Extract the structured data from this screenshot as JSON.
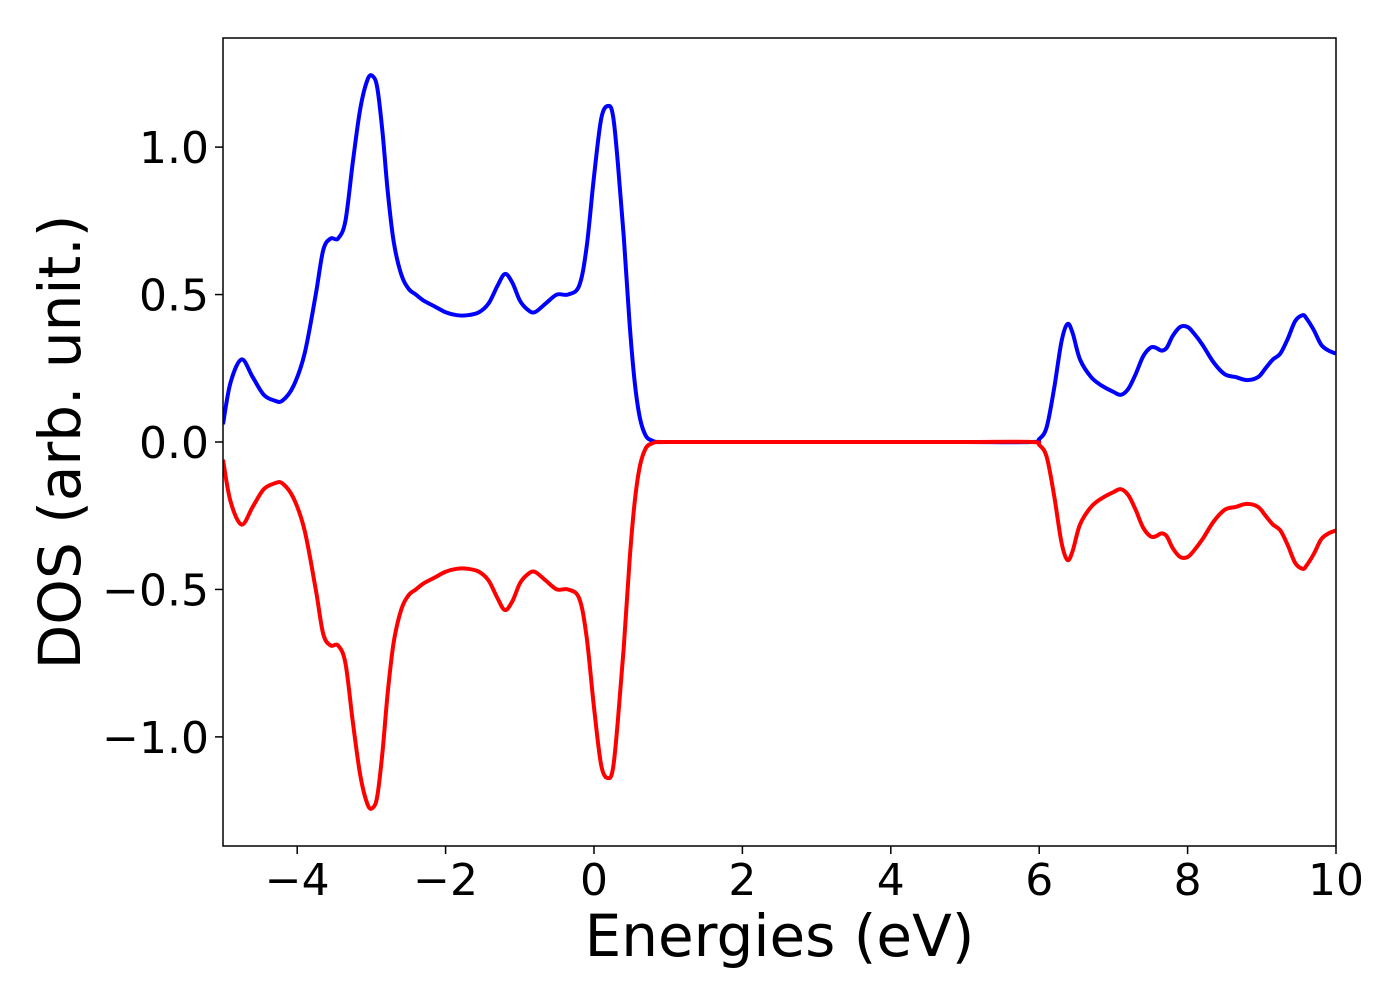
{
  "chart_data": {
    "type": "line",
    "title": "",
    "xlabel": "Energies (eV)",
    "ylabel": "DOS (arb. unit.)",
    "xlim": [
      -5,
      10
    ],
    "ylim": [
      -1.37,
      1.37
    ],
    "grid": false,
    "legend": "none",
    "x_ticks": [
      {
        "value": -4,
        "label": "−4"
      },
      {
        "value": -2,
        "label": "−2"
      },
      {
        "value": 0,
        "label": "0"
      },
      {
        "value": 2,
        "label": "2"
      },
      {
        "value": 4,
        "label": "4"
      },
      {
        "value": 6,
        "label": "6"
      },
      {
        "value": 8,
        "label": "8"
      },
      {
        "value": 10,
        "label": "10"
      }
    ],
    "y_ticks": [
      {
        "value": 1.0,
        "label": "1.0"
      },
      {
        "value": 0.5,
        "label": "0.5"
      },
      {
        "value": 0.0,
        "label": "0.0"
      },
      {
        "value": -0.5,
        "label": "−0.5"
      },
      {
        "value": -1.0,
        "label": "−1.0"
      }
    ],
    "series": [
      {
        "color": "#0000ff",
        "x": [
          -5.0,
          -4.9,
          -4.75,
          -4.6,
          -4.45,
          -4.3,
          -4.2,
          -4.05,
          -3.9,
          -3.75,
          -3.65,
          -3.55,
          -3.45,
          -3.35,
          -3.25,
          -3.15,
          -3.05,
          -2.98,
          -2.92,
          -2.85,
          -2.78,
          -2.7,
          -2.6,
          -2.5,
          -2.4,
          -2.3,
          -2.15,
          -2.0,
          -1.85,
          -1.7,
          -1.55,
          -1.42,
          -1.3,
          -1.2,
          -1.1,
          -1.0,
          -0.9,
          -0.8,
          -0.65,
          -0.5,
          -0.35,
          -0.2,
          -0.1,
          0.0,
          0.1,
          0.2,
          0.26,
          0.32,
          0.4,
          0.48,
          0.55,
          0.62,
          0.7,
          0.78,
          0.85,
          1.0,
          2.0,
          3.0,
          4.0,
          5.0,
          5.9,
          6.0,
          6.1,
          6.2,
          6.3,
          6.38,
          6.45,
          6.55,
          6.7,
          6.85,
          7.0,
          7.1,
          7.2,
          7.3,
          7.4,
          7.5,
          7.57,
          7.65,
          7.72,
          7.8,
          7.9,
          8.0,
          8.08,
          8.2,
          8.35,
          8.5,
          8.65,
          8.8,
          8.95,
          9.05,
          9.15,
          9.25,
          9.35,
          9.45,
          9.55,
          9.6,
          9.7,
          9.8,
          9.9,
          10.0
        ],
        "y": [
          0.06,
          0.2,
          0.28,
          0.22,
          0.16,
          0.14,
          0.14,
          0.19,
          0.3,
          0.5,
          0.65,
          0.69,
          0.69,
          0.75,
          0.95,
          1.13,
          1.23,
          1.24,
          1.2,
          1.05,
          0.85,
          0.68,
          0.57,
          0.52,
          0.5,
          0.48,
          0.46,
          0.44,
          0.43,
          0.43,
          0.44,
          0.47,
          0.53,
          0.57,
          0.54,
          0.48,
          0.45,
          0.44,
          0.47,
          0.5,
          0.5,
          0.53,
          0.66,
          0.9,
          1.1,
          1.14,
          1.1,
          0.95,
          0.7,
          0.4,
          0.2,
          0.08,
          0.02,
          0.005,
          0.0,
          0.0,
          0.0,
          0.0,
          0.0,
          0.0,
          0.0,
          0.01,
          0.05,
          0.18,
          0.34,
          0.4,
          0.37,
          0.28,
          0.22,
          0.19,
          0.17,
          0.16,
          0.18,
          0.23,
          0.29,
          0.32,
          0.32,
          0.31,
          0.32,
          0.36,
          0.39,
          0.39,
          0.37,
          0.33,
          0.27,
          0.23,
          0.22,
          0.21,
          0.22,
          0.25,
          0.28,
          0.3,
          0.35,
          0.41,
          0.43,
          0.42,
          0.38,
          0.33,
          0.31,
          0.3
        ]
      },
      {
        "color": "#ff0000",
        "x": [
          -5.0,
          -4.9,
          -4.75,
          -4.6,
          -4.45,
          -4.3,
          -4.2,
          -4.05,
          -3.9,
          -3.75,
          -3.65,
          -3.55,
          -3.45,
          -3.35,
          -3.25,
          -3.15,
          -3.05,
          -2.98,
          -2.92,
          -2.85,
          -2.78,
          -2.7,
          -2.6,
          -2.5,
          -2.4,
          -2.3,
          -2.15,
          -2.0,
          -1.85,
          -1.7,
          -1.55,
          -1.42,
          -1.3,
          -1.2,
          -1.1,
          -1.0,
          -0.9,
          -0.8,
          -0.65,
          -0.5,
          -0.35,
          -0.2,
          -0.1,
          0.0,
          0.1,
          0.2,
          0.26,
          0.32,
          0.4,
          0.48,
          0.55,
          0.62,
          0.7,
          0.78,
          0.85,
          1.0,
          2.0,
          3.0,
          4.0,
          5.0,
          5.9,
          6.0,
          6.1,
          6.2,
          6.3,
          6.38,
          6.45,
          6.55,
          6.7,
          6.85,
          7.0,
          7.1,
          7.2,
          7.3,
          7.4,
          7.5,
          7.57,
          7.65,
          7.72,
          7.8,
          7.9,
          8.0,
          8.08,
          8.2,
          8.35,
          8.5,
          8.65,
          8.8,
          8.95,
          9.05,
          9.15,
          9.25,
          9.35,
          9.45,
          9.55,
          9.6,
          9.7,
          9.8,
          9.9,
          10.0
        ],
        "y": [
          -0.06,
          -0.2,
          -0.28,
          -0.22,
          -0.16,
          -0.14,
          -0.14,
          -0.19,
          -0.3,
          -0.5,
          -0.65,
          -0.69,
          -0.69,
          -0.75,
          -0.95,
          -1.13,
          -1.23,
          -1.24,
          -1.2,
          -1.05,
          -0.85,
          -0.68,
          -0.57,
          -0.52,
          -0.5,
          -0.48,
          -0.46,
          -0.44,
          -0.43,
          -0.43,
          -0.44,
          -0.47,
          -0.53,
          -0.57,
          -0.54,
          -0.48,
          -0.45,
          -0.44,
          -0.47,
          -0.5,
          -0.5,
          -0.53,
          -0.66,
          -0.9,
          -1.1,
          -1.14,
          -1.1,
          -0.95,
          -0.7,
          -0.4,
          -0.2,
          -0.08,
          -0.02,
          -0.005,
          0.0,
          0.0,
          0.0,
          0.0,
          0.0,
          0.0,
          0.0,
          -0.01,
          -0.05,
          -0.18,
          -0.34,
          -0.4,
          -0.37,
          -0.28,
          -0.22,
          -0.19,
          -0.17,
          -0.16,
          -0.18,
          -0.23,
          -0.29,
          -0.32,
          -0.32,
          -0.31,
          -0.32,
          -0.36,
          -0.39,
          -0.39,
          -0.37,
          -0.33,
          -0.27,
          -0.23,
          -0.22,
          -0.21,
          -0.22,
          -0.25,
          -0.28,
          -0.3,
          -0.35,
          -0.41,
          -0.43,
          -0.42,
          -0.38,
          -0.33,
          -0.31,
          -0.3
        ]
      }
    ]
  }
}
